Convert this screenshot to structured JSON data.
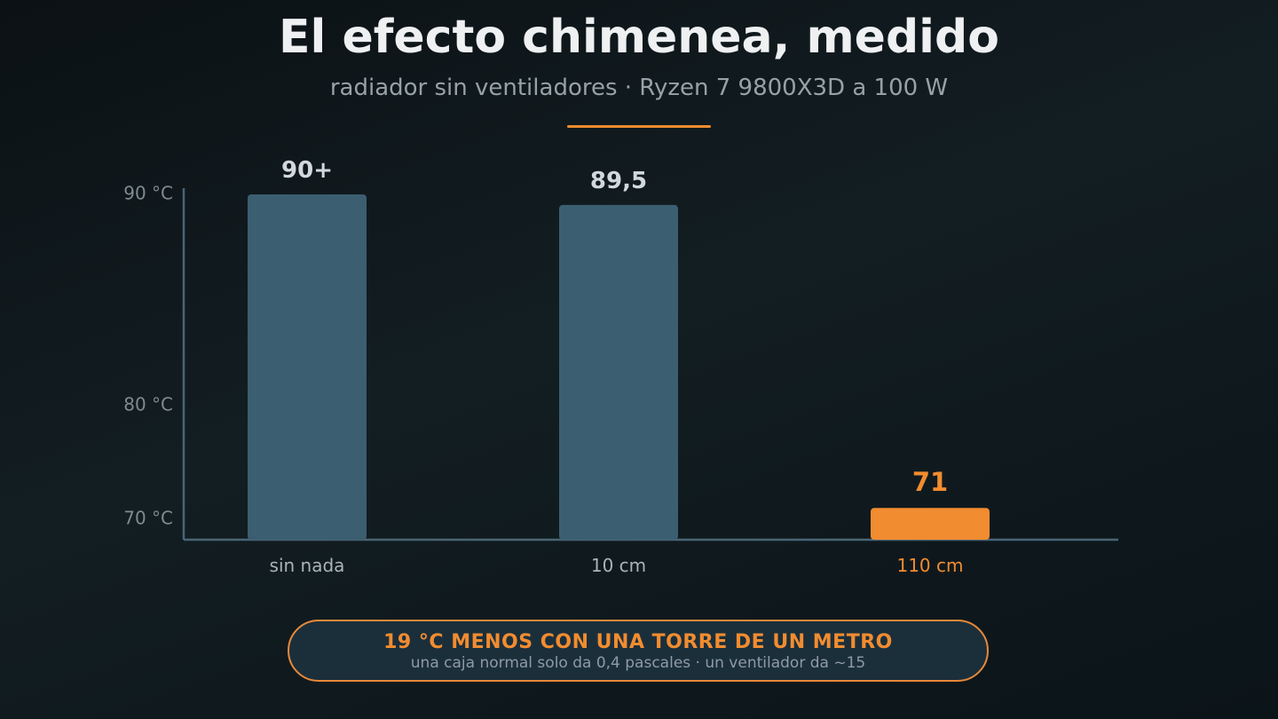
{
  "header": {
    "title": "El efecto chimenea, medido",
    "subtitle": "radiador sin ventiladores · Ryzen 7 9800X3D a 100 W"
  },
  "colors": {
    "accent": "#f28c30",
    "bar": "#3b5e71",
    "axis": "#4a6577",
    "tick_text": "#7f8a91",
    "label_text": "#aab3b9",
    "value_text": "#d2d8dc"
  },
  "chart_data": {
    "type": "bar",
    "categories": [
      "sin nada",
      "10 cm",
      "110 cm"
    ],
    "values": [
      90,
      89.5,
      71
    ],
    "value_labels": [
      "90+",
      "89,5",
      "71"
    ],
    "highlight_index": 2,
    "y_ticks": [
      {
        "value": 90,
        "label": "90 °C"
      },
      {
        "value": 80,
        "label": "80 °C"
      },
      {
        "value": 70,
        "label": "70 °C"
      }
    ],
    "ylim": [
      69,
      90
    ],
    "grid": false,
    "legend": "none"
  },
  "callout": {
    "headline": "19 °C MENOS CON UNA TORRE DE UN METRO",
    "note": "una caja normal solo da 0,4 pascales · un ventilador da ~15"
  }
}
